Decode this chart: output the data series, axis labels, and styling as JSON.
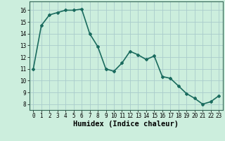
{
  "x": [
    0,
    1,
    2,
    3,
    4,
    5,
    6,
    7,
    8,
    9,
    10,
    11,
    12,
    13,
    14,
    15,
    16,
    17,
    18,
    19,
    20,
    21,
    22,
    23
  ],
  "y": [
    11.0,
    14.7,
    15.6,
    15.8,
    16.0,
    16.0,
    16.1,
    14.0,
    12.9,
    11.0,
    10.8,
    11.5,
    12.5,
    12.2,
    11.8,
    12.1,
    10.35,
    10.2,
    9.55,
    8.9,
    8.5,
    8.0,
    8.2,
    8.7
  ],
  "line_color": "#1a6b5e",
  "marker": "D",
  "marker_size": 2.0,
  "background_color": "#cceedd",
  "grid_color": "#aacccc",
  "xlabel": "Humidex (Indice chaleur)",
  "xlim": [
    -0.5,
    23.5
  ],
  "ylim": [
    7.5,
    16.75
  ],
  "yticks": [
    8,
    9,
    10,
    11,
    12,
    13,
    14,
    15,
    16
  ],
  "xticks": [
    0,
    1,
    2,
    3,
    4,
    5,
    6,
    7,
    8,
    9,
    10,
    11,
    12,
    13,
    14,
    15,
    16,
    17,
    18,
    19,
    20,
    21,
    22,
    23
  ],
  "tick_fontsize": 5.5,
  "xlabel_fontsize": 7.5,
  "line_width": 1.2
}
